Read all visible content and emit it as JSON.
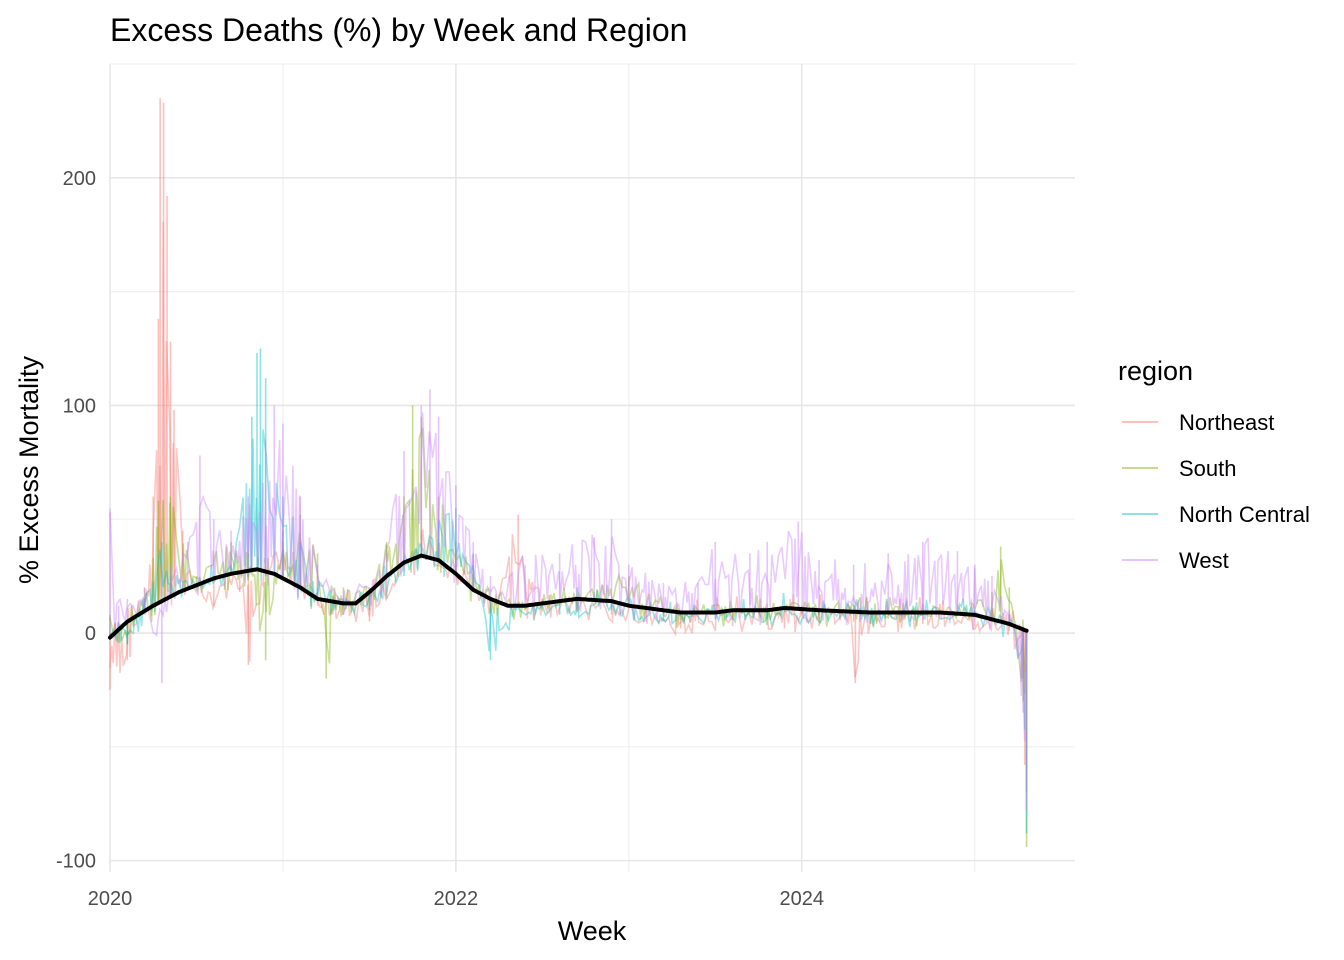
{
  "chart_data": {
    "type": "line",
    "title": "Excess Deaths (%) by Week and Region",
    "xlabel": "Week",
    "ylabel": "% Excess Mortality",
    "xlim": [
      2020.0,
      2025.58
    ],
    "ylim": [
      -105,
      250
    ],
    "x_ticks": [
      2020,
      2022,
      2024
    ],
    "x_tick_labels": [
      "2020",
      "2022",
      "2024"
    ],
    "y_ticks": [
      -100,
      0,
      100,
      200
    ],
    "y_tick_labels": [
      "-100",
      "0",
      "100",
      "200"
    ],
    "grid": true,
    "legend": {
      "title": "region",
      "position": "right"
    },
    "series": [
      {
        "name": "Northeast",
        "color": "#F8766D",
        "points": [
          [
            2020.0,
            -25
          ],
          [
            2020.1,
            -12
          ],
          [
            2020.2,
            20
          ],
          [
            2020.25,
            60
          ],
          [
            2020.28,
            138
          ],
          [
            2020.29,
            235
          ],
          [
            2020.31,
            233
          ],
          [
            2020.33,
            192
          ],
          [
            2020.35,
            128
          ],
          [
            2020.37,
            98
          ],
          [
            2020.42,
            45
          ],
          [
            2020.5,
            20
          ],
          [
            2020.6,
            12
          ],
          [
            2020.75,
            18
          ],
          [
            2020.8,
            -14
          ],
          [
            2020.9,
            25
          ],
          [
            2021.0,
            40
          ],
          [
            2021.1,
            30
          ],
          [
            2021.2,
            12
          ],
          [
            2021.35,
            8
          ],
          [
            2021.5,
            5
          ],
          [
            2021.6,
            15
          ],
          [
            2021.7,
            30
          ],
          [
            2021.8,
            45
          ],
          [
            2021.9,
            30
          ],
          [
            2022.0,
            35
          ],
          [
            2022.1,
            20
          ],
          [
            2022.2,
            10
          ],
          [
            2022.36,
            52
          ],
          [
            2022.5,
            15
          ],
          [
            2022.7,
            10
          ],
          [
            2022.9,
            8
          ],
          [
            2023.1,
            5
          ],
          [
            2023.3,
            2
          ],
          [
            2023.6,
            3
          ],
          [
            2023.9,
            2
          ],
          [
            2024.1,
            3
          ],
          [
            2024.3,
            5
          ],
          [
            2024.31,
            -22
          ],
          [
            2024.4,
            4
          ],
          [
            2024.7,
            4
          ],
          [
            2025.0,
            3
          ],
          [
            2025.2,
            1
          ],
          [
            2025.27,
            -20
          ],
          [
            2025.29,
            -58
          ],
          [
            2025.3,
            -70
          ]
        ]
      },
      {
        "name": "South",
        "color": "#7CAE00",
        "points": [
          [
            2020.0,
            8
          ],
          [
            2020.1,
            -5
          ],
          [
            2020.2,
            10
          ],
          [
            2020.28,
            58
          ],
          [
            2020.35,
            60
          ],
          [
            2020.5,
            25
          ],
          [
            2020.7,
            40
          ],
          [
            2020.8,
            35
          ],
          [
            2020.9,
            -12
          ],
          [
            2021.0,
            45
          ],
          [
            2021.1,
            52
          ],
          [
            2021.2,
            35
          ],
          [
            2021.25,
            -20
          ],
          [
            2021.35,
            20
          ],
          [
            2021.5,
            18
          ],
          [
            2021.6,
            40
          ],
          [
            2021.7,
            60
          ],
          [
            2021.75,
            100
          ],
          [
            2021.8,
            95
          ],
          [
            2021.9,
            60
          ],
          [
            2022.0,
            40
          ],
          [
            2022.1,
            30
          ],
          [
            2022.2,
            15
          ],
          [
            2022.4,
            10
          ],
          [
            2022.6,
            15
          ],
          [
            2022.8,
            18
          ],
          [
            2023.0,
            25
          ],
          [
            2023.2,
            10
          ],
          [
            2023.5,
            10
          ],
          [
            2023.8,
            10
          ],
          [
            2024.0,
            12
          ],
          [
            2024.3,
            12
          ],
          [
            2024.6,
            10
          ],
          [
            2024.9,
            10
          ],
          [
            2025.1,
            18
          ],
          [
            2025.15,
            38
          ],
          [
            2025.2,
            20
          ],
          [
            2025.28,
            -30
          ],
          [
            2025.3,
            -94
          ]
        ]
      },
      {
        "name": "North Central",
        "color": "#00BFC4",
        "points": [
          [
            2020.0,
            0
          ],
          [
            2020.1,
            -5
          ],
          [
            2020.2,
            15
          ],
          [
            2020.3,
            40
          ],
          [
            2020.35,
            25
          ],
          [
            2020.5,
            20
          ],
          [
            2020.7,
            30
          ],
          [
            2020.82,
            95
          ],
          [
            2020.85,
            123
          ],
          [
            2020.87,
            125
          ],
          [
            2020.9,
            112
          ],
          [
            2021.0,
            60
          ],
          [
            2021.1,
            40
          ],
          [
            2021.2,
            20
          ],
          [
            2021.35,
            15
          ],
          [
            2021.5,
            10
          ],
          [
            2021.7,
            25
          ],
          [
            2021.8,
            40
          ],
          [
            2021.9,
            50
          ],
          [
            2022.0,
            55
          ],
          [
            2022.1,
            35
          ],
          [
            2022.2,
            -12
          ],
          [
            2022.35,
            10
          ],
          [
            2022.6,
            8
          ],
          [
            2022.9,
            10
          ],
          [
            2023.2,
            5
          ],
          [
            2023.5,
            6
          ],
          [
            2023.8,
            6
          ],
          [
            2024.1,
            8
          ],
          [
            2024.4,
            8
          ],
          [
            2024.7,
            8
          ],
          [
            2025.0,
            10
          ],
          [
            2025.2,
            8
          ],
          [
            2025.28,
            -20
          ],
          [
            2025.3,
            -88
          ]
        ]
      },
      {
        "name": "West",
        "color": "#C77CFF",
        "points": [
          [
            2020.0,
            53
          ],
          [
            2020.05,
            12
          ],
          [
            2020.1,
            15
          ],
          [
            2020.2,
            20
          ],
          [
            2020.3,
            -22
          ],
          [
            2020.35,
            30
          ],
          [
            2020.45,
            40
          ],
          [
            2020.52,
            78
          ],
          [
            2020.6,
            50
          ],
          [
            2020.7,
            45
          ],
          [
            2020.8,
            60
          ],
          [
            2020.9,
            85
          ],
          [
            2020.95,
            100
          ],
          [
            2021.0,
            92
          ],
          [
            2021.1,
            60
          ],
          [
            2021.2,
            30
          ],
          [
            2021.35,
            15
          ],
          [
            2021.5,
            20
          ],
          [
            2021.6,
            35
          ],
          [
            2021.7,
            80
          ],
          [
            2021.8,
            100
          ],
          [
            2021.85,
            107
          ],
          [
            2021.9,
            95
          ],
          [
            2022.0,
            65
          ],
          [
            2022.1,
            40
          ],
          [
            2022.2,
            25
          ],
          [
            2022.4,
            30
          ],
          [
            2022.6,
            35
          ],
          [
            2022.8,
            42
          ],
          [
            2022.9,
            50
          ],
          [
            2023.0,
            30
          ],
          [
            2023.2,
            22
          ],
          [
            2023.4,
            22
          ],
          [
            2023.5,
            40
          ],
          [
            2023.7,
            35
          ],
          [
            2023.8,
            40
          ],
          [
            2023.98,
            49
          ],
          [
            2024.1,
            32
          ],
          [
            2024.3,
            30
          ],
          [
            2024.5,
            35
          ],
          [
            2024.7,
            40
          ],
          [
            2024.9,
            36
          ],
          [
            2025.0,
            30
          ],
          [
            2025.1,
            25
          ],
          [
            2025.2,
            10
          ],
          [
            2025.28,
            -35
          ],
          [
            2025.3,
            -78
          ]
        ]
      },
      {
        "name": "",
        "color": "#000000",
        "points": [
          [
            2020.0,
            -2
          ],
          [
            2020.1,
            5
          ],
          [
            2020.25,
            12
          ],
          [
            2020.4,
            18
          ],
          [
            2020.5,
            21
          ],
          [
            2020.6,
            24
          ],
          [
            2020.7,
            26
          ],
          [
            2020.85,
            28
          ],
          [
            2020.95,
            26
          ],
          [
            2021.0,
            24
          ],
          [
            2021.1,
            20
          ],
          [
            2021.2,
            15
          ],
          [
            2021.35,
            13
          ],
          [
            2021.42,
            13
          ],
          [
            2021.5,
            18
          ],
          [
            2021.6,
            25
          ],
          [
            2021.7,
            31
          ],
          [
            2021.8,
            34
          ],
          [
            2021.9,
            32
          ],
          [
            2022.0,
            26
          ],
          [
            2022.1,
            19
          ],
          [
            2022.2,
            15
          ],
          [
            2022.3,
            12
          ],
          [
            2022.4,
            12
          ],
          [
            2022.6,
            14
          ],
          [
            2022.7,
            15
          ],
          [
            2022.9,
            14
          ],
          [
            2023.0,
            12
          ],
          [
            2023.1,
            11
          ],
          [
            2023.3,
            9
          ],
          [
            2023.5,
            9
          ],
          [
            2023.6,
            10
          ],
          [
            2023.8,
            10
          ],
          [
            2023.9,
            11
          ],
          [
            2024.1,
            10
          ],
          [
            2024.4,
            9
          ],
          [
            2024.6,
            9
          ],
          [
            2024.8,
            9
          ],
          [
            2025.0,
            8
          ],
          [
            2025.1,
            6
          ],
          [
            2025.2,
            4
          ],
          [
            2025.3,
            1
          ]
        ]
      }
    ],
    "trend_style": "smoothed black line"
  }
}
